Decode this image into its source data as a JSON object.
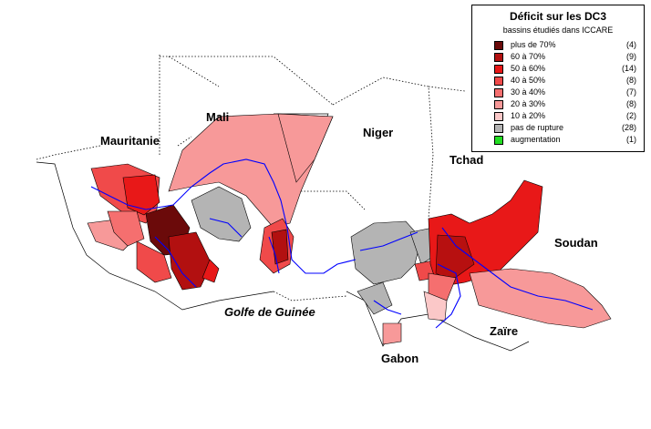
{
  "legend": {
    "title": "Déficit sur les DC3",
    "subtitle": "bassins étudiés dans ICCARE",
    "items": [
      {
        "label": "plus de 70%",
        "count": "(4)",
        "color": "#6b0a0a"
      },
      {
        "label": "60  à  70%",
        "count": "(9)",
        "color": "#b21010"
      },
      {
        "label": "50  à  60%",
        "count": "(14)",
        "color": "#e81818"
      },
      {
        "label": "40  à  50%",
        "count": "(8)",
        "color": "#f04a4a"
      },
      {
        "label": "30  à  40%",
        "count": "(7)",
        "color": "#f56f6f"
      },
      {
        "label": "20  à  30%",
        "count": "(8)",
        "color": "#f79999"
      },
      {
        "label": "10  à  20%",
        "count": "(2)",
        "color": "#fbc8c8"
      },
      {
        "label": "pas de rupture",
        "count": "(28)",
        "color": "#b4b4b4"
      },
      {
        "label": "augmentation",
        "count": "(1)",
        "color": "#22dd22"
      }
    ]
  },
  "labels": {
    "mali": "Mali",
    "mauritanie": "Mauritanie",
    "niger": "Niger",
    "tchad": "Tchad",
    "soudan": "Soudan",
    "zaire": "Zaïre",
    "gabon": "Gabon",
    "golfe": "Golfe de Guinée"
  },
  "colors": {
    "river": "#0000ff",
    "border": "#000000"
  }
}
